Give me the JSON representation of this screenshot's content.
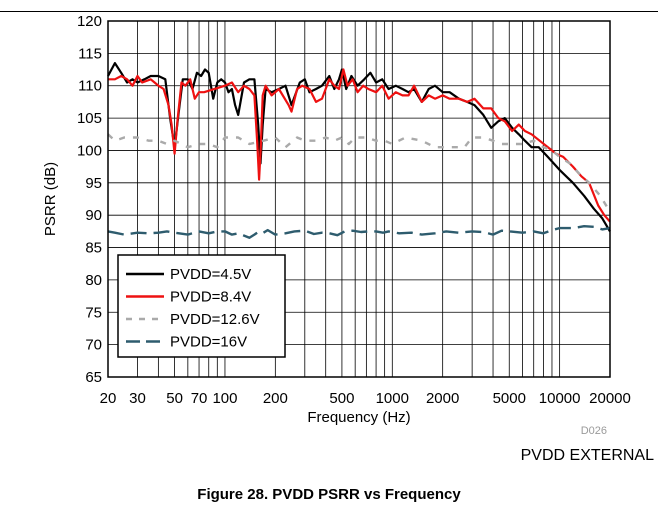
{
  "figure_caption": "Figure 28. PVDD PSRR vs Frequency",
  "doc_id": "D026",
  "chart_data": {
    "type": "line",
    "subtitle": "PVDD EXTERNAL",
    "xlabel": "Frequency (Hz)",
    "ylabel": "PSRR (dB)",
    "x_scale": "log",
    "xlim": [
      20,
      20000
    ],
    "ylim": [
      65,
      120
    ],
    "x_tick_labels": [
      {
        "value": 20,
        "label": "20"
      },
      {
        "value": 30,
        "label": "30"
      },
      {
        "value": 50,
        "label": "50"
      },
      {
        "value": 70,
        "label": "70"
      },
      {
        "value": 100,
        "label": "100"
      },
      {
        "value": 200,
        "label": "200"
      },
      {
        "value": 500,
        "label": "500"
      },
      {
        "value": 1000,
        "label": "1000"
      },
      {
        "value": 2000,
        "label": "2000"
      },
      {
        "value": 5000,
        "label": "5000"
      },
      {
        "value": 10000,
        "label": "10000"
      },
      {
        "value": 20000,
        "label": "20000"
      }
    ],
    "y_ticks": [
      65,
      70,
      75,
      80,
      85,
      90,
      95,
      100,
      105,
      110,
      115,
      120
    ],
    "grid": true,
    "legend_position": "bottom-left",
    "series": [
      {
        "name": "PVDD=4.5V",
        "color": "#000000",
        "dash": "solid",
        "points": [
          [
            20,
            111.5
          ],
          [
            22,
            113.5
          ],
          [
            24,
            112
          ],
          [
            26,
            110.5
          ],
          [
            28,
            111
          ],
          [
            30,
            110.5
          ],
          [
            33,
            111
          ],
          [
            36,
            111.5
          ],
          [
            40,
            111.5
          ],
          [
            44,
            111
          ],
          [
            47,
            105
          ],
          [
            50,
            100.5
          ],
          [
            53,
            106
          ],
          [
            56,
            111
          ],
          [
            60,
            111
          ],
          [
            64,
            109.5
          ],
          [
            68,
            112
          ],
          [
            72,
            111.5
          ],
          [
            76,
            112.5
          ],
          [
            80,
            112
          ],
          [
            85,
            108
          ],
          [
            90,
            110.5
          ],
          [
            95,
            111
          ],
          [
            100,
            110.5
          ],
          [
            105,
            109
          ],
          [
            110,
            109.5
          ],
          [
            115,
            107
          ],
          [
            120,
            105.5
          ],
          [
            130,
            110.5
          ],
          [
            140,
            111
          ],
          [
            150,
            111
          ],
          [
            158,
            104
          ],
          [
            163,
            98
          ],
          [
            168,
            104
          ],
          [
            175,
            109.5
          ],
          [
            190,
            109
          ],
          [
            210,
            109.5
          ],
          [
            230,
            110
          ],
          [
            250,
            107
          ],
          [
            280,
            110.5
          ],
          [
            300,
            111
          ],
          [
            320,
            109
          ],
          [
            350,
            109.5
          ],
          [
            380,
            110
          ],
          [
            420,
            111.5
          ],
          [
            450,
            109.5
          ],
          [
            480,
            111
          ],
          [
            500,
            112.5
          ],
          [
            530,
            109.5
          ],
          [
            570,
            111.5
          ],
          [
            620,
            110
          ],
          [
            680,
            111
          ],
          [
            740,
            112
          ],
          [
            800,
            110.5
          ],
          [
            870,
            111
          ],
          [
            950,
            109.5
          ],
          [
            1050,
            110
          ],
          [
            1150,
            109.5
          ],
          [
            1250,
            109
          ],
          [
            1350,
            109.5
          ],
          [
            1500,
            107.5
          ],
          [
            1650,
            109.5
          ],
          [
            1800,
            110
          ],
          [
            2000,
            109
          ],
          [
            2200,
            109
          ],
          [
            2500,
            108
          ],
          [
            2800,
            107.5
          ],
          [
            3100,
            107
          ],
          [
            3500,
            105.5
          ],
          [
            3900,
            103.5
          ],
          [
            4300,
            104.5
          ],
          [
            4700,
            105
          ],
          [
            5200,
            103.5
          ],
          [
            5700,
            102.5
          ],
          [
            6200,
            101.5
          ],
          [
            6800,
            100.5
          ],
          [
            7500,
            100.5
          ],
          [
            8500,
            99
          ],
          [
            10000,
            97
          ],
          [
            12000,
            95
          ],
          [
            14000,
            93
          ],
          [
            16000,
            91
          ],
          [
            18000,
            89.5
          ],
          [
            20000,
            87.5
          ]
        ]
      },
      {
        "name": "PVDD=8.4V",
        "color": "#ee1111",
        "dash": "solid",
        "points": [
          [
            20,
            111
          ],
          [
            22,
            111
          ],
          [
            24,
            111.5
          ],
          [
            26,
            111
          ],
          [
            28,
            110
          ],
          [
            30,
            111.5
          ],
          [
            32,
            110.5
          ],
          [
            36,
            111
          ],
          [
            38,
            110.5
          ],
          [
            40,
            110
          ],
          [
            43,
            109.5
          ],
          [
            46,
            107
          ],
          [
            48,
            104
          ],
          [
            50,
            99.5
          ],
          [
            52,
            104.5
          ],
          [
            55,
            110.5
          ],
          [
            58,
            110
          ],
          [
            62,
            111
          ],
          [
            66,
            108
          ],
          [
            70,
            109
          ],
          [
            75,
            109
          ],
          [
            100,
            110
          ],
          [
            110,
            110.5
          ],
          [
            120,
            109
          ],
          [
            130,
            110
          ],
          [
            140,
            109.5
          ],
          [
            150,
            108.5
          ],
          [
            156,
            101
          ],
          [
            160,
            95.5
          ],
          [
            164,
            101
          ],
          [
            168,
            108.5
          ],
          [
            175,
            110
          ],
          [
            190,
            108.5
          ],
          [
            210,
            109.5
          ],
          [
            240,
            107
          ],
          [
            250,
            106
          ],
          [
            270,
            109.5
          ],
          [
            290,
            110
          ],
          [
            320,
            109.5
          ],
          [
            350,
            107.5
          ],
          [
            380,
            108
          ],
          [
            420,
            111
          ],
          [
            450,
            110
          ],
          [
            480,
            109.5
          ],
          [
            510,
            112.5
          ],
          [
            540,
            110
          ],
          [
            580,
            111
          ],
          [
            620,
            109
          ],
          [
            670,
            110
          ],
          [
            720,
            109.5
          ],
          [
            800,
            109
          ],
          [
            870,
            110
          ],
          [
            950,
            108
          ],
          [
            1050,
            109
          ],
          [
            1150,
            108.5
          ],
          [
            1250,
            108.5
          ],
          [
            1350,
            110
          ],
          [
            1500,
            107.5
          ],
          [
            1650,
            108.5
          ],
          [
            1800,
            108
          ],
          [
            2000,
            108.5
          ],
          [
            2200,
            108
          ],
          [
            2500,
            108
          ],
          [
            2800,
            107.5
          ],
          [
            3100,
            108
          ],
          [
            3500,
            106.5
          ],
          [
            3900,
            106.5
          ],
          [
            4300,
            105
          ],
          [
            4700,
            104.5
          ],
          [
            5200,
            103
          ],
          [
            5700,
            104
          ],
          [
            6200,
            103
          ],
          [
            6800,
            102.5
          ],
          [
            9000,
            100
          ],
          [
            9500,
            99.5
          ],
          [
            10500,
            99
          ],
          [
            12000,
            97.5
          ],
          [
            13500,
            96
          ],
          [
            15000,
            95
          ],
          [
            17000,
            91.5
          ],
          [
            18500,
            90
          ],
          [
            20000,
            89
          ]
        ]
      },
      {
        "name": "PVDD=12.6V",
        "color": "#aaaaaa",
        "dash": "dashed",
        "points": [
          [
            20,
            102.5
          ],
          [
            22,
            101.5
          ],
          [
            25,
            102
          ],
          [
            30,
            102
          ],
          [
            35,
            101.5
          ],
          [
            40,
            101.5
          ],
          [
            45,
            101
          ],
          [
            50,
            101.5
          ],
          [
            60,
            100.5
          ],
          [
            70,
            101
          ],
          [
            80,
            101
          ],
          [
            90,
            100.5
          ],
          [
            100,
            102
          ],
          [
            120,
            102
          ],
          [
            140,
            101
          ],
          [
            170,
            101.5
          ],
          [
            200,
            102
          ],
          [
            230,
            100.5
          ],
          [
            270,
            102
          ],
          [
            300,
            101.5
          ],
          [
            350,
            101.5
          ],
          [
            400,
            102
          ],
          [
            450,
            101.5
          ],
          [
            500,
            102
          ],
          [
            550,
            101
          ],
          [
            600,
            102
          ],
          [
            700,
            102
          ],
          [
            800,
            101.5
          ],
          [
            900,
            101.5
          ],
          [
            1000,
            101
          ],
          [
            1200,
            102
          ],
          [
            1500,
            101.5
          ],
          [
            1800,
            100.5
          ],
          [
            2200,
            100.5
          ],
          [
            2700,
            100.5
          ],
          [
            3000,
            102
          ],
          [
            3500,
            102
          ],
          [
            4000,
            101.5
          ],
          [
            4500,
            101
          ],
          [
            5000,
            101
          ],
          [
            6000,
            101
          ],
          [
            7000,
            101.5
          ],
          [
            8000,
            100.5
          ],
          [
            9000,
            100
          ],
          [
            10000,
            99
          ],
          [
            11500,
            98
          ],
          [
            13000,
            96.5
          ],
          [
            15000,
            95
          ],
          [
            17500,
            93
          ],
          [
            20000,
            90.5
          ]
        ]
      },
      {
        "name": "PVDD=16V",
        "color": "#2e5c6e",
        "dash": "long-dash",
        "points": [
          [
            20,
            87.5
          ],
          [
            22,
            87.3
          ],
          [
            25,
            87
          ],
          [
            30,
            87.3
          ],
          [
            35,
            87.2
          ],
          [
            40,
            87.3
          ],
          [
            45,
            87.5
          ],
          [
            50,
            87.3
          ],
          [
            60,
            87
          ],
          [
            70,
            87.5
          ],
          [
            80,
            87.2
          ],
          [
            90,
            87.5
          ],
          [
            100,
            87.5
          ],
          [
            110,
            87
          ],
          [
            120,
            87.2
          ],
          [
            140,
            86.5
          ],
          [
            150,
            87
          ],
          [
            160,
            87.5
          ],
          [
            170,
            87.3
          ],
          [
            180,
            87.7
          ],
          [
            200,
            87
          ],
          [
            230,
            87.2
          ],
          [
            260,
            87.5
          ],
          [
            300,
            87.6
          ],
          [
            340,
            87.1
          ],
          [
            380,
            87.3
          ],
          [
            420,
            87.2
          ],
          [
            470,
            86.9
          ],
          [
            520,
            87.5
          ],
          [
            580,
            87.6
          ],
          [
            650,
            87.4
          ],
          [
            720,
            87.5
          ],
          [
            800,
            87.5
          ],
          [
            880,
            87.3
          ],
          [
            950,
            87.5
          ],
          [
            1100,
            87.2
          ],
          [
            1300,
            87.3
          ],
          [
            1500,
            87
          ],
          [
            1800,
            87.2
          ],
          [
            2100,
            87.5
          ],
          [
            2500,
            87.3
          ],
          [
            3000,
            87.5
          ],
          [
            3500,
            87.4
          ],
          [
            4000,
            87
          ],
          [
            4500,
            87.6
          ],
          [
            5000,
            87.5
          ],
          [
            6000,
            87.3
          ],
          [
            7000,
            87.5
          ],
          [
            8000,
            87.2
          ],
          [
            9000,
            87.7
          ],
          [
            10000,
            88
          ],
          [
            12000,
            88
          ],
          [
            14000,
            88.3
          ],
          [
            16000,
            88.2
          ],
          [
            18000,
            87.8
          ],
          [
            20000,
            88
          ]
        ]
      }
    ]
  }
}
